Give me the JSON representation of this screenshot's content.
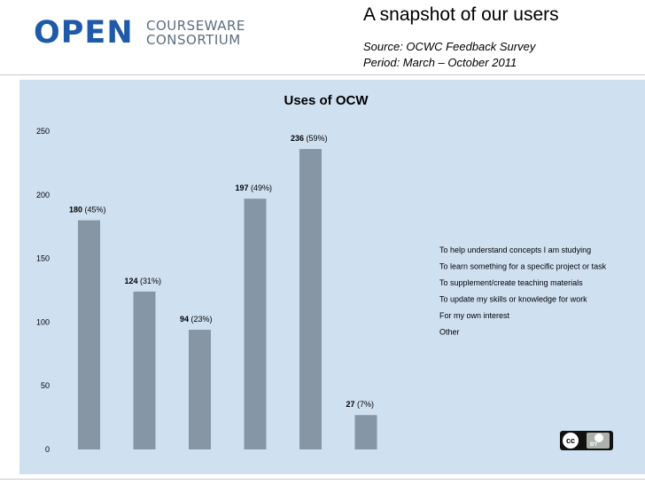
{
  "header": {
    "logo_main": "OPEN",
    "logo_line1": "COURSEWARE",
    "logo_line2": "CONSORTIUM",
    "title": "A snapshot of our users",
    "source": "Source: OCWC Feedback Survey",
    "period": "Period: March – October 2011"
  },
  "license": {
    "cc": "cc",
    "by": "BY"
  },
  "colors": {
    "bar": "#8696a5",
    "background": "#cfe0f1",
    "logo_blue": "#1e5aa8"
  },
  "chart_data": {
    "type": "bar",
    "title": "Uses of OCW",
    "categories": [
      "To help understand concepts I am studying",
      "To learn something for a specific project or task",
      "To supplement/create teaching materials",
      "To update my skills or knowledge for work",
      "For my own interest",
      "Other"
    ],
    "values": [
      180,
      124,
      94,
      197,
      236,
      27
    ],
    "percents": [
      "(45%)",
      "(31%)",
      "(23%)",
      "(49%)",
      "(59%)",
      "(7%)"
    ],
    "ylim": [
      0,
      250
    ],
    "yticks": [
      0,
      50,
      100,
      150,
      200,
      250
    ],
    "grid": false,
    "legend_position": "right"
  }
}
